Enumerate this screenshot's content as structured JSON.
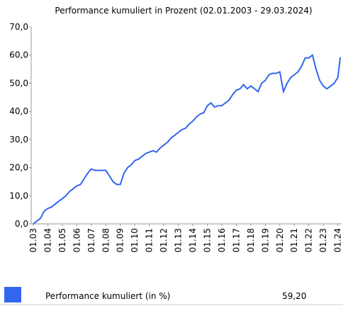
{
  "chart_data": {
    "type": "line",
    "title": "Performance kumuliert in Prozent (02.01.2003  - 29.03.2024)",
    "x": [
      "01.03",
      "04.03",
      "07.03",
      "10.03",
      "01.04",
      "04.04",
      "07.04",
      "10.04",
      "01.05",
      "04.05",
      "07.05",
      "10.05",
      "01.06",
      "04.06",
      "07.06",
      "10.06",
      "01.07",
      "04.07",
      "07.07",
      "10.07",
      "01.08",
      "04.08",
      "07.08",
      "10.08",
      "01.09",
      "04.09",
      "07.09",
      "10.09",
      "01.10",
      "04.10",
      "07.10",
      "10.10",
      "01.11",
      "04.11",
      "07.11",
      "10.11",
      "01.12",
      "04.12",
      "07.12",
      "10.12",
      "01.13",
      "04.13",
      "07.13",
      "10.13",
      "01.14",
      "04.14",
      "07.14",
      "10.14",
      "01.15",
      "04.15",
      "07.15",
      "10.15",
      "01.16",
      "04.16",
      "07.16",
      "10.16",
      "01.17",
      "04.17",
      "07.17",
      "10.17",
      "01.18",
      "04.18",
      "07.18",
      "10.18",
      "01.19",
      "04.19",
      "07.19",
      "10.19",
      "01.20",
      "04.20",
      "07.20",
      "10.20",
      "01.21",
      "04.21",
      "07.21",
      "10.21",
      "01.22",
      "04.22",
      "07.22",
      "10.22",
      "01.23",
      "04.23",
      "07.23",
      "10.23",
      "01.24",
      "03.24"
    ],
    "series": [
      {
        "name": "Performance kumuliert (in %)",
        "color": "#3366ee",
        "values": [
          0,
          1,
          2,
          4.5,
          5.5,
          6,
          7,
          8,
          9,
          10,
          11.5,
          12.5,
          13.5,
          14,
          16,
          18,
          19.5,
          19,
          19,
          19,
          19,
          17,
          15,
          14,
          14,
          18,
          20,
          21,
          22.5,
          23,
          24,
          25,
          25.5,
          26,
          25.5,
          27,
          28,
          29,
          30.5,
          31.5,
          32.5,
          33.5,
          34,
          35.5,
          36.5,
          38,
          39,
          39.5,
          42,
          43,
          41.5,
          42,
          42,
          43,
          44,
          46,
          47.5,
          48,
          49.5,
          48,
          49,
          48,
          47,
          50,
          51,
          53,
          53.5,
          53.5,
          54,
          47,
          50,
          52,
          53,
          54,
          56,
          59,
          59,
          60,
          55,
          51,
          49,
          48,
          49,
          50,
          52,
          59.2
        ],
        "value_labels": [
          null,
          null,
          null,
          null,
          null,
          null,
          null,
          null,
          null,
          null,
          null,
          null,
          null,
          null,
          null,
          null,
          null,
          null,
          null,
          null,
          null,
          null,
          null,
          null,
          null,
          null,
          null,
          null,
          null,
          null,
          null,
          null,
          null,
          null,
          null,
          null,
          null,
          null,
          null,
          null,
          null,
          null,
          null,
          null,
          null,
          null,
          null,
          null,
          null,
          null,
          null,
          null,
          null,
          null,
          null,
          null,
          null,
          null,
          null,
          null,
          null,
          null,
          null,
          null,
          null,
          null,
          null,
          null,
          null,
          null,
          null,
          null,
          null,
          null,
          null,
          null,
          null,
          null,
          null,
          null,
          null,
          null,
          null,
          null,
          null,
          "59,20"
        ]
      }
    ],
    "xticks": [
      "01.03",
      "01.04",
      "01.05",
      "01.06",
      "01.07",
      "01.08",
      "01.09",
      "01.10",
      "01.11",
      "01.12",
      "01.13",
      "01.14",
      "01.15",
      "01.16",
      "01.17",
      "01.18",
      "01.19",
      "01.20",
      "01.21",
      "01.22",
      "01.23",
      "01.24"
    ],
    "ylim": [
      0,
      70
    ],
    "yticks": [
      {
        "value": 0,
        "label": "0,0"
      },
      {
        "value": 10,
        "label": "10,0"
      },
      {
        "value": 20,
        "label": "20,0"
      },
      {
        "value": 30,
        "label": "30,0"
      },
      {
        "value": 40,
        "label": "40,0"
      },
      {
        "value": 50,
        "label": "50,0"
      },
      {
        "value": 60,
        "label": "60,0"
      },
      {
        "value": 70,
        "label": "70,0"
      }
    ],
    "grid": false
  }
}
